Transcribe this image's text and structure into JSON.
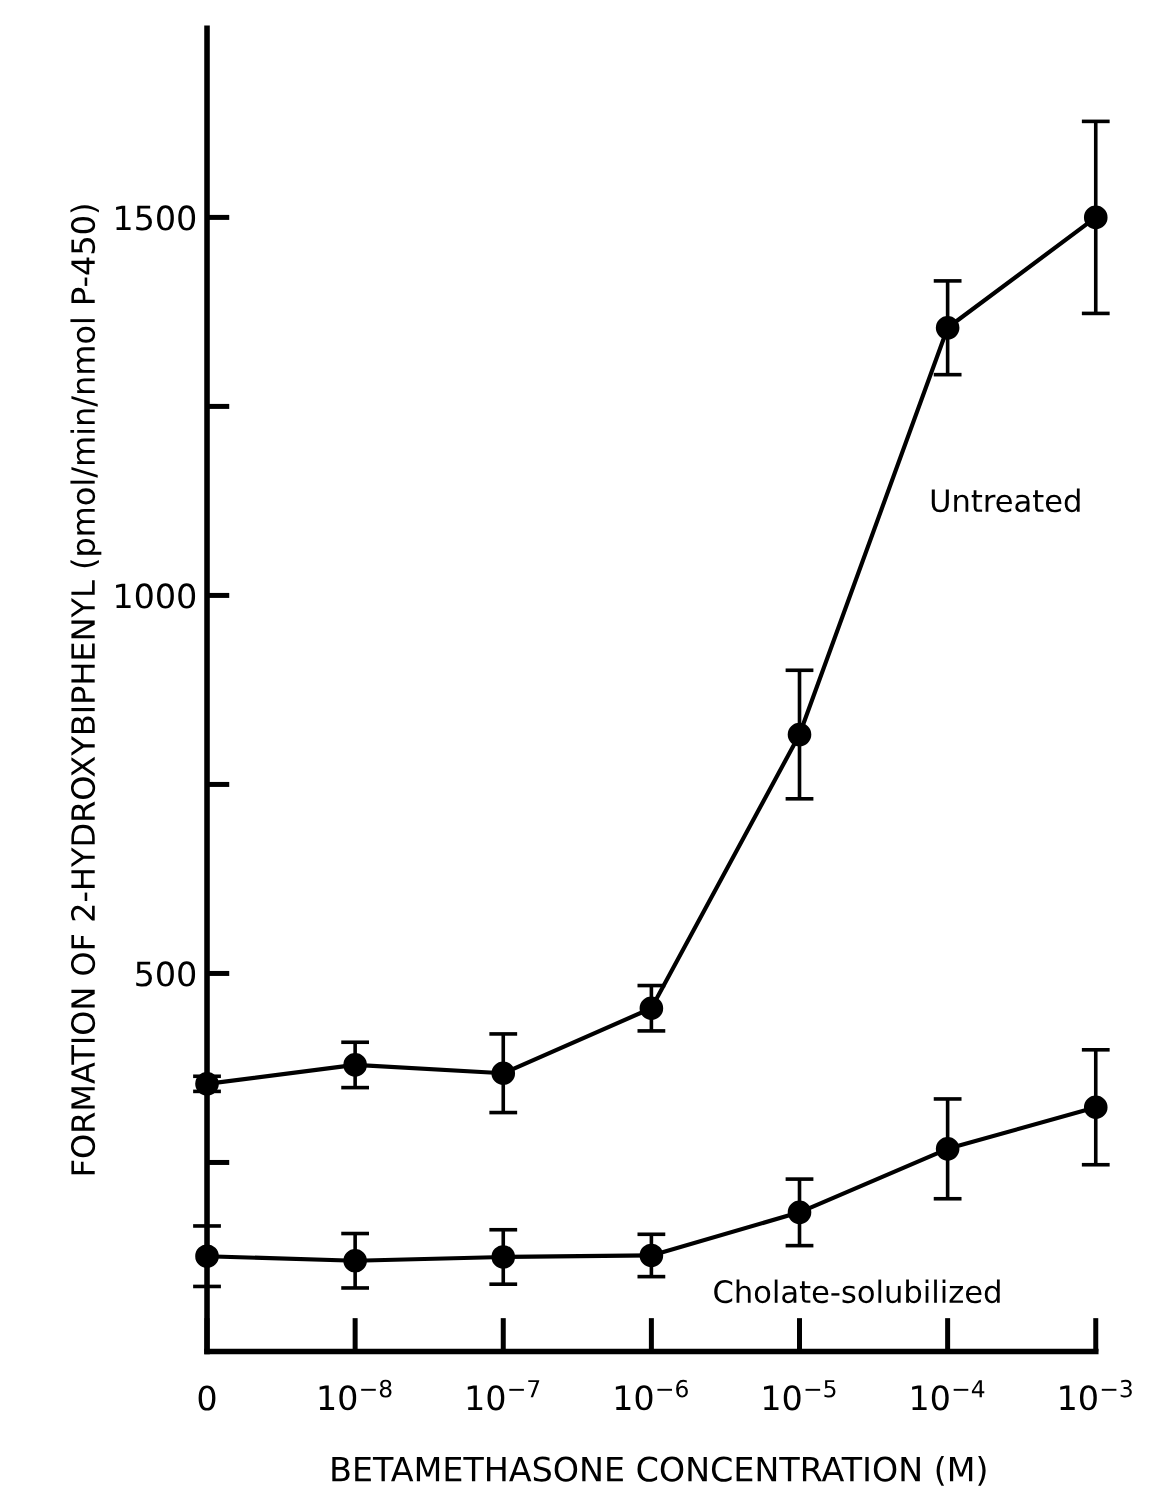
{
  "chart_data": {
    "type": "line",
    "xlabel": "BETAMETHASONE CONCENTRATION (M)",
    "ylabel": "FORMATION OF 2-HYDROXYBIPHENYL (pmol/min/nmol P-450)",
    "categories": [
      "0",
      "10$^{−8}$",
      "10$^{−7}$",
      "10$^{−6}$",
      "10$^{−5}$",
      "10$^{−4}$",
      "10$^{−3}$"
    ],
    "series": [
      {
        "name": "Untreated",
        "color": "#000000",
        "marker": "circle",
        "values": [
          354,
          379,
          368,
          454,
          816,
          1354,
          1500
        ],
        "errors": [
          10,
          30,
          52,
          30,
          85,
          62,
          127
        ]
      },
      {
        "name": "Cholate-solubilized",
        "color": "#000000",
        "marker": "circle",
        "values": [
          126,
          120,
          125,
          127,
          184,
          268,
          323
        ],
        "errors": [
          40,
          36,
          36,
          28,
          44,
          66,
          76
        ]
      }
    ],
    "ylim": [
      0,
      1750
    ],
    "yticks": [
      {
        "value": 250,
        "label": null
      },
      500,
      {
        "value": 750,
        "label": null
      },
      1000,
      {
        "value": 1250,
        "label": null
      },
      1500
    ],
    "grid": false,
    "legend": false,
    "line_style": "solid"
  }
}
